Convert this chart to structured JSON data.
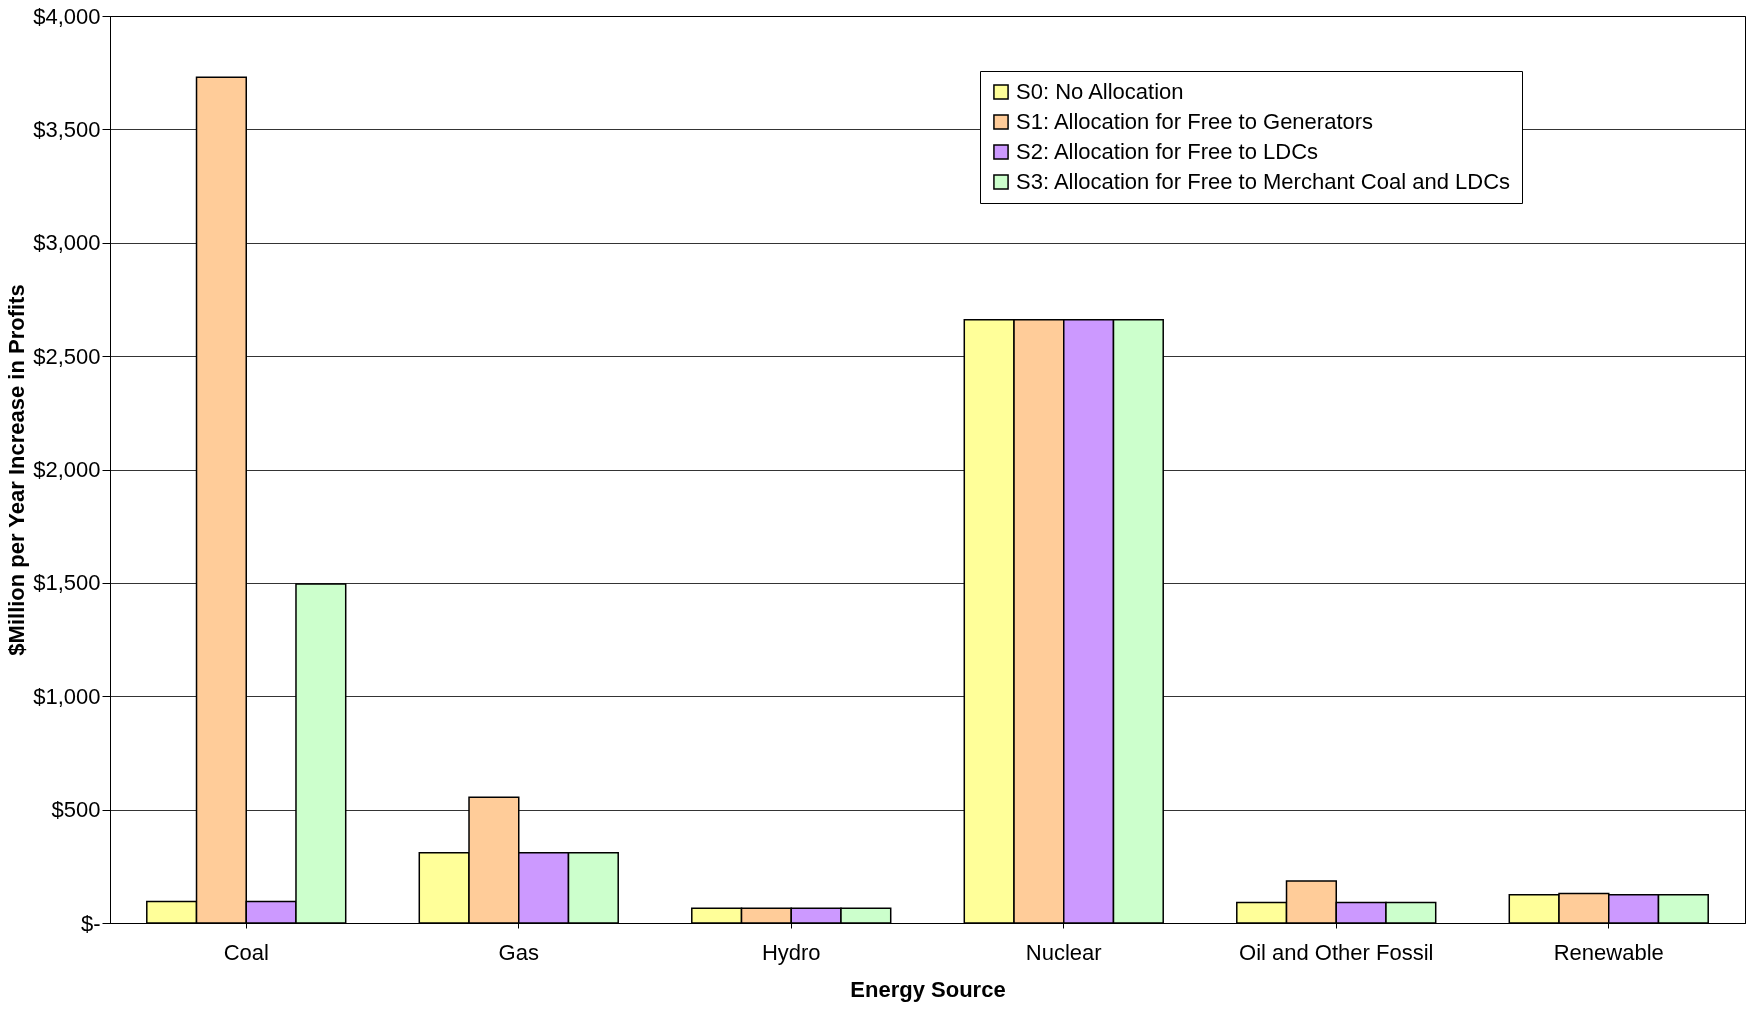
{
  "chart_data": {
    "type": "bar",
    "xlabel": "Energy Source",
    "ylabel": "$Million per Year Increase in Profits",
    "categories": [
      "Coal",
      "Gas",
      "Hydro",
      "Nuclear",
      "Oil and Other Fossil",
      "Renewable"
    ],
    "series": [
      {
        "name": "S0: No Allocation",
        "color": "#ffff99",
        "values": [
          95,
          310,
          65,
          2660,
          90,
          125
        ]
      },
      {
        "name": "S1: Allocation for Free to Generators",
        "color": "#ffcc99",
        "values": [
          3730,
          555,
          65,
          2660,
          185,
          130
        ]
      },
      {
        "name": "S2: Allocation for Free to LDCs",
        "color": "#cc99ff",
        "values": [
          95,
          310,
          65,
          2660,
          90,
          125
        ]
      },
      {
        "name": "S3: Allocation for Free to Merchant Coal and LDCs",
        "color": "#ccffcc",
        "values": [
          1495,
          310,
          65,
          2660,
          90,
          125
        ]
      }
    ],
    "ylim": [
      0,
      4000
    ],
    "yticks": [
      {
        "value": 0,
        "label": "$-"
      },
      {
        "value": 500,
        "label": "$500"
      },
      {
        "value": 1000,
        "label": "$1,000"
      },
      {
        "value": 1500,
        "label": "$1,500"
      },
      {
        "value": 2000,
        "label": "$2,000"
      },
      {
        "value": 2500,
        "label": "$2,500"
      },
      {
        "value": 3000,
        "label": "$3,000"
      },
      {
        "value": 3500,
        "label": "$3,500"
      },
      {
        "value": 4000,
        "label": "$4,000"
      }
    ],
    "grid": "y",
    "legend": "top right"
  }
}
